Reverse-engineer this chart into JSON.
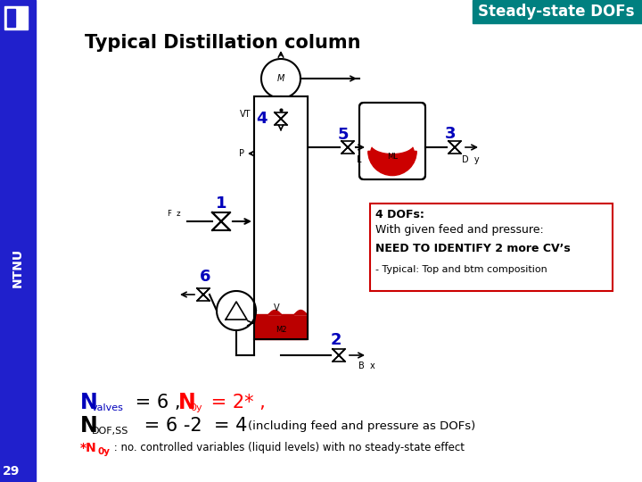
{
  "title": "Typical Distillation column",
  "header": "Steady-state DOFs",
  "header_bg": "#008080",
  "header_text_color": "white",
  "bg_color": "white",
  "left_bar_color": "#2020cc",
  "box_line1": "4 DOFs:",
  "box_line2": "With given feed and pressure:",
  "box_line3": "NEED TO IDENTIFY 2 more CV’s",
  "box_line4": "- Typical: Top and btm composition",
  "num_color": "#0000bb",
  "label_29": "29"
}
